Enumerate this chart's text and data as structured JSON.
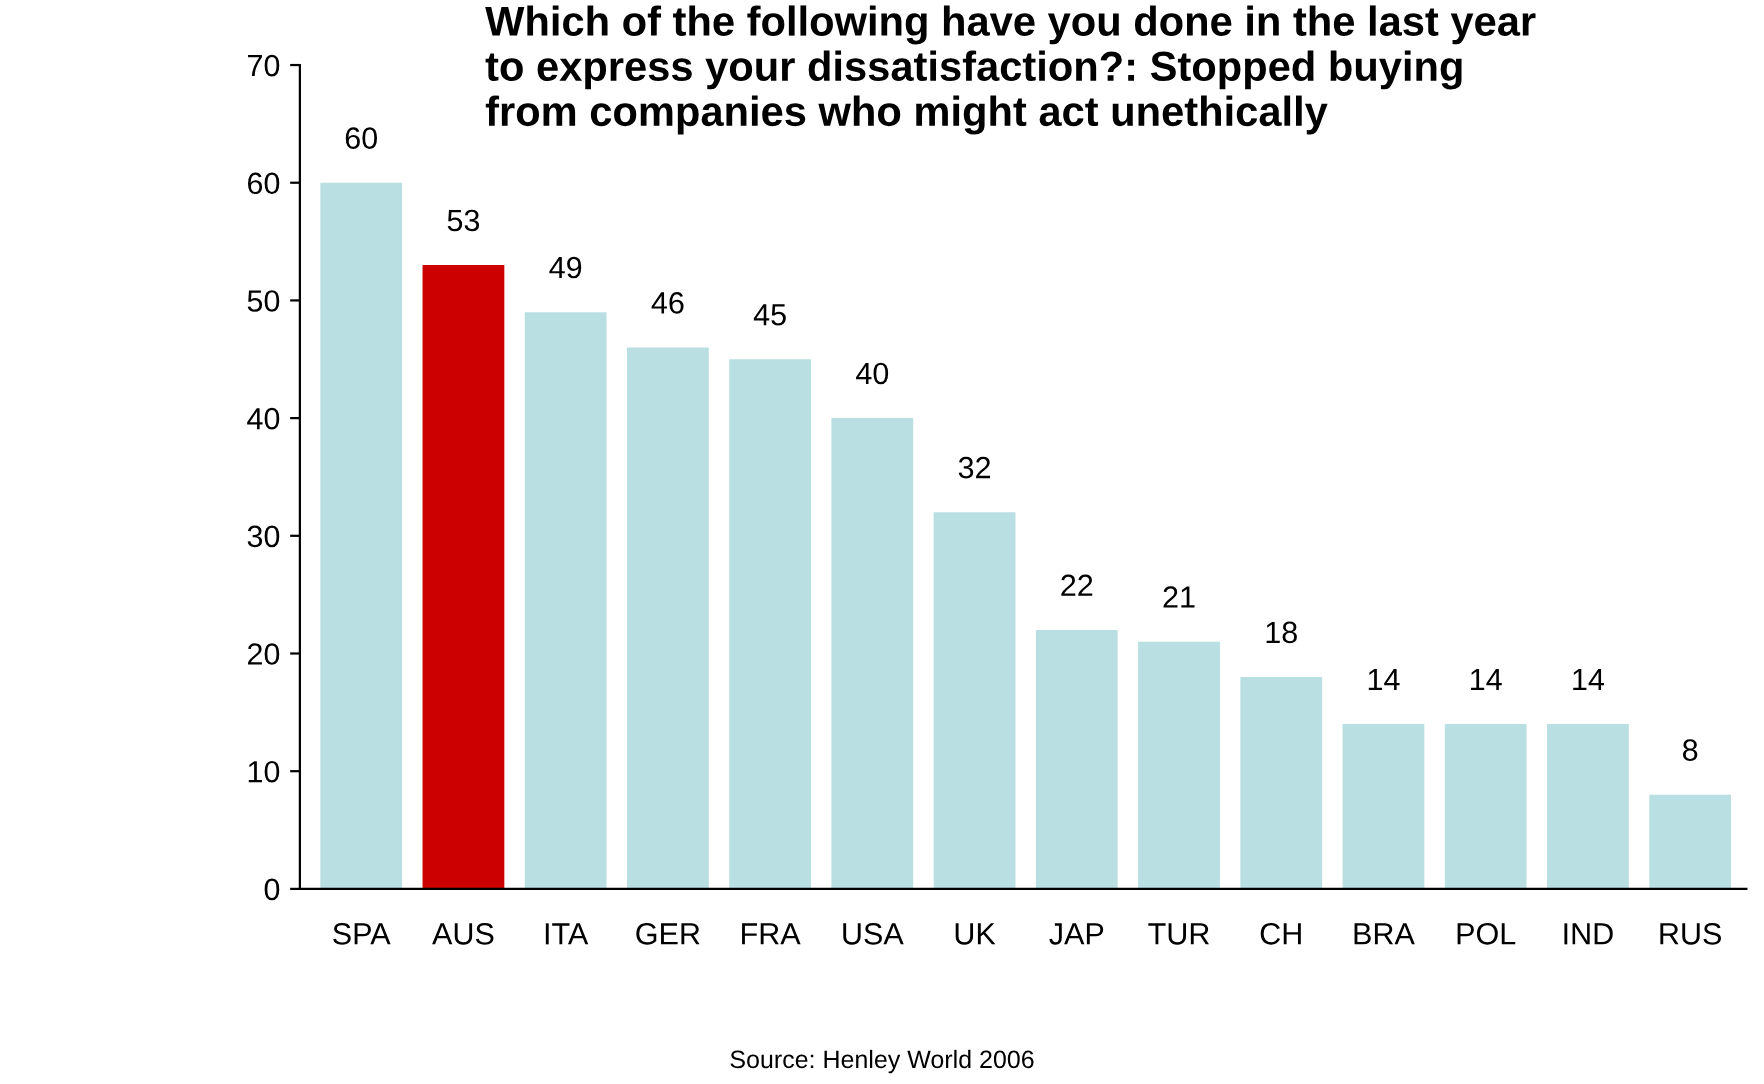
{
  "chart_data": {
    "type": "bar",
    "title": "Which of the following have you done in the last year\nto express your dissatisfaction?: Stopped buying\nfrom companies who might act unethically",
    "categories": [
      "SPA",
      "AUS",
      "ITA",
      "GER",
      "FRA",
      "USA",
      "UK",
      "JAP",
      "TUR",
      "CH",
      "BRA",
      "POL",
      "IND",
      "RUS"
    ],
    "values": [
      60,
      53,
      49,
      46,
      45,
      40,
      32,
      22,
      21,
      18,
      14,
      14,
      14,
      8
    ],
    "colors": [
      "#b9dfe2",
      "#cc0000",
      "#b9dfe2",
      "#b9dfe2",
      "#b9dfe2",
      "#b9dfe2",
      "#b9dfe2",
      "#b9dfe2",
      "#b9dfe2",
      "#b9dfe2",
      "#b9dfe2",
      "#b9dfe2",
      "#b9dfe2",
      "#b9dfe2"
    ],
    "ylim": [
      0,
      70
    ],
    "yticks": [
      0,
      10,
      20,
      30,
      40,
      50,
      60,
      70
    ],
    "data_labels": true,
    "grid": false,
    "legend": false,
    "annotations": [
      "Source: Henley World 2006"
    ]
  }
}
